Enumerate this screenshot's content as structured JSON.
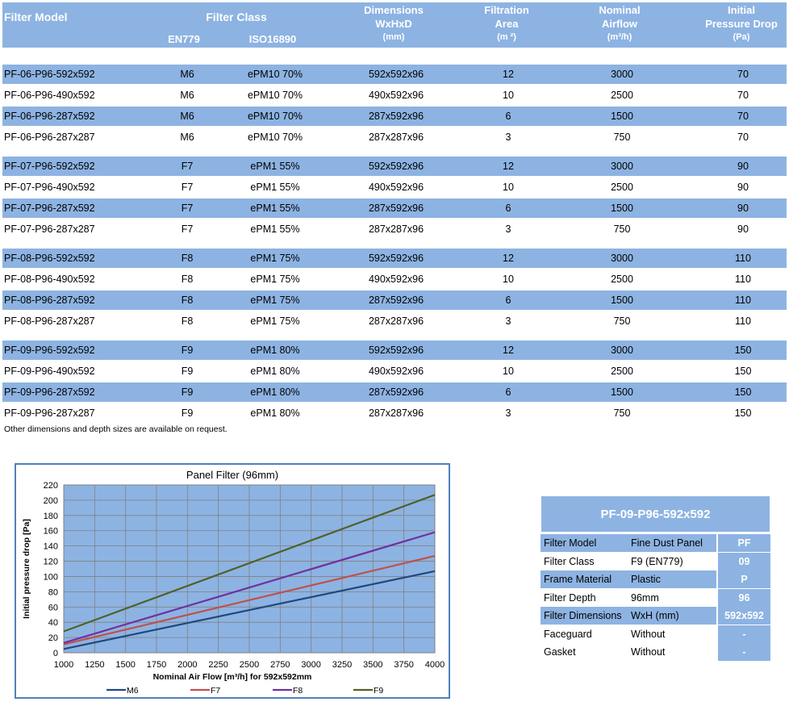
{
  "table": {
    "headers": {
      "filter_model": "Filter Model",
      "filter_class": "Filter Class",
      "en779": "EN779",
      "iso16890": "ISO16890",
      "dims_1": "Dimensions",
      "dims_2": "WxHxD",
      "dims_3": "(mm)",
      "area_1": "Filtration",
      "area_2": "Area",
      "area_3": "(m ²)",
      "airflow_1": "Nominal",
      "airflow_2": "Airflow",
      "airflow_3": "(m³/h)",
      "pd_1": "Initial",
      "pd_2": "Pressure Drop",
      "pd_3": "(Pa)"
    },
    "rows": [
      [
        "PF-06-P96-592x592",
        "M6",
        "ePM10 70%",
        "592x592x96",
        "12",
        "3000",
        "70"
      ],
      [
        "PF-06-P96-490x592",
        "M6",
        "ePM10 70%",
        "490x592x96",
        "10",
        "2500",
        "70"
      ],
      [
        "PF-06-P96-287x592",
        "M6",
        "ePM10 70%",
        "287x592x96",
        "6",
        "1500",
        "70"
      ],
      [
        "PF-06-P96-287x287",
        "M6",
        "ePM10 70%",
        "287x287x96",
        "3",
        "750",
        "70"
      ],
      [
        "PF-07-P96-592x592",
        "F7",
        "ePM1 55%",
        "592x592x96",
        "12",
        "3000",
        "90"
      ],
      [
        "PF-07-P96-490x592",
        "F7",
        "ePM1 55%",
        "490x592x96",
        "10",
        "2500",
        "90"
      ],
      [
        "PF-07-P96-287x592",
        "F7",
        "ePM1 55%",
        "287x592x96",
        "6",
        "1500",
        "90"
      ],
      [
        "PF-07-P96-287x287",
        "F7",
        "ePM1 55%",
        "287x287x96",
        "3",
        "750",
        "90"
      ],
      [
        "PF-08-P96-592x592",
        "F8",
        "ePM1 75%",
        "592x592x96",
        "12",
        "3000",
        "110"
      ],
      [
        "PF-08-P96-490x592",
        "F8",
        "ePM1 75%",
        "490x592x96",
        "10",
        "2500",
        "110"
      ],
      [
        "PF-08-P96-287x592",
        "F8",
        "ePM1 75%",
        "287x592x96",
        "6",
        "1500",
        "110"
      ],
      [
        "PF-08-P96-287x287",
        "F8",
        "ePM1 75%",
        "287x287x96",
        "3",
        "750",
        "110"
      ],
      [
        "PF-09-P96-592x592",
        "F9",
        "ePM1 80%",
        "592x592x96",
        "12",
        "3000",
        "150"
      ],
      [
        "PF-09-P96-490x592",
        "F9",
        "ePM1 80%",
        "490x592x96",
        "10",
        "2500",
        "150"
      ],
      [
        "PF-09-P96-287x592",
        "F9",
        "ePM1 80%",
        "287x592x96",
        "6",
        "1500",
        "150"
      ],
      [
        "PF-09-P96-287x287",
        "F9",
        "ePM1 80%",
        "287x287x96",
        "3",
        "750",
        "150"
      ]
    ],
    "note": "Other dimensions and depth sizes are available on request."
  },
  "chart_data": {
    "type": "line",
    "title": "Panel Filter (96mm)",
    "xlabel": "Nominal Air Flow [m³/h] for 592x592mm",
    "ylabel": "Initial pressure drop [Pa]",
    "xlim": [
      1000,
      4000
    ],
    "ylim": [
      0,
      220
    ],
    "x_ticks": [
      1000,
      1250,
      1500,
      1750,
      2000,
      2250,
      2500,
      2750,
      3000,
      3250,
      3500,
      3750,
      4000
    ],
    "y_ticks": [
      0,
      20,
      40,
      60,
      80,
      100,
      120,
      140,
      160,
      180,
      200,
      220
    ],
    "grid": true,
    "legend_position": "bottom",
    "plot_background": "#8db3e2",
    "series": [
      {
        "name": "M6",
        "color": "#1f497d",
        "x": [
          1000,
          4000
        ],
        "y": [
          5,
          107
        ]
      },
      {
        "name": "F7",
        "color": "#c0504d",
        "x": [
          1000,
          4000
        ],
        "y": [
          11,
          127
        ]
      },
      {
        "name": "F8",
        "color": "#7030a0",
        "x": [
          1000,
          4000
        ],
        "y": [
          13,
          158
        ]
      },
      {
        "name": "F9",
        "color": "#4f6228",
        "x": [
          1000,
          4000
        ],
        "y": [
          28,
          207
        ]
      }
    ]
  },
  "spec": {
    "title": "PF-09-P96-592x592",
    "rows": [
      {
        "label": "Filter Model",
        "value": "Fine Dust Panel",
        "code": "PF",
        "blue": true
      },
      {
        "label": "Filter Class",
        "value": "F9 (EN779)",
        "code": "09",
        "blue": false
      },
      {
        "label": "Frame Material",
        "value": "Plastic",
        "code": "P",
        "blue": true
      },
      {
        "label": "Filter Depth",
        "value": "96mm",
        "code": "96",
        "blue": false
      },
      {
        "label": "Filter Dimensions",
        "value": "WxH (mm)",
        "code": "592x592",
        "blue": true
      },
      {
        "label": "Faceguard",
        "value": "Without",
        "code": "-",
        "blue": false
      },
      {
        "label": "Gasket",
        "value": "Without",
        "code": "-",
        "blue": false
      }
    ]
  }
}
